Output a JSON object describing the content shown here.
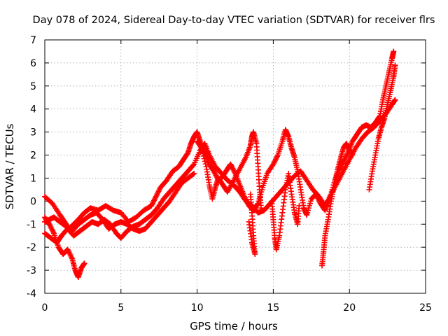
{
  "chart_data": {
    "type": "scatter",
    "title": "Day 078 of 2024, Sidereal Day-to-day VTEC variation (SDTVAR) for receiver flrs",
    "xlabel": "GPS time / hours",
    "ylabel": "SDTVAR / TECUs",
    "xlim": [
      0,
      25
    ],
    "ylim": [
      -4,
      7
    ],
    "xticks": [
      "0",
      "5",
      "10",
      "15",
      "20",
      "25"
    ],
    "yticks": [
      "-4",
      "-3",
      "-2",
      "-1",
      "0",
      "1",
      "2",
      "3",
      "4",
      "5",
      "6",
      "7"
    ],
    "grid": true,
    "marker": "+",
    "series": [
      {
        "name": "SDTVAR",
        "color": "#ff0000",
        "segments": [
          [
            [
              0.0,
              0.2
            ],
            [
              0.5,
              -0.1
            ],
            [
              1.0,
              -0.6
            ],
            [
              1.3,
              -0.9
            ],
            [
              1.6,
              -1.2
            ],
            [
              1.9,
              -1.0
            ],
            [
              2.2,
              -0.8
            ],
            [
              2.6,
              -0.5
            ],
            [
              3.0,
              -0.3
            ],
            [
              3.5,
              -0.4
            ],
            [
              4.0,
              -0.2
            ],
            [
              4.5,
              -0.4
            ],
            [
              5.0,
              -0.5
            ],
            [
              5.5,
              -0.9
            ],
            [
              6.0,
              -0.7
            ],
            [
              6.5,
              -0.4
            ],
            [
              7.0,
              -0.2
            ],
            [
              7.3,
              0.2
            ],
            [
              7.6,
              0.6
            ],
            [
              8.0,
              0.9
            ],
            [
              8.4,
              1.3
            ],
            [
              8.8,
              1.5
            ],
            [
              9.1,
              1.8
            ],
            [
              9.4,
              2.1
            ],
            [
              9.6,
              2.5
            ],
            [
              9.8,
              2.8
            ],
            [
              10.0,
              3.0
            ],
            [
              10.2,
              2.6
            ],
            [
              10.5,
              2.1
            ],
            [
              10.8,
              1.6
            ],
            [
              11.1,
              1.3
            ],
            [
              11.4,
              0.9
            ],
            [
              11.7,
              1.1
            ],
            [
              12.0,
              1.4
            ],
            [
              12.2,
              1.6
            ],
            [
              12.5,
              1.2
            ],
            [
              12.8,
              0.7
            ],
            [
              13.1,
              0.2
            ],
            [
              13.4,
              -0.2
            ],
            [
              13.7,
              -0.4
            ],
            [
              14.0,
              -0.1
            ],
            [
              14.3,
              0.6
            ],
            [
              14.6,
              1.2
            ],
            [
              15.0,
              1.6
            ],
            [
              15.3,
              2.0
            ],
            [
              15.6,
              2.6
            ],
            [
              15.8,
              3.1
            ],
            [
              16.0,
              2.8
            ],
            [
              16.2,
              2.3
            ],
            [
              16.4,
              1.9
            ],
            [
              16.6,
              1.3
            ],
            [
              16.8,
              0.5
            ],
            [
              17.0,
              -0.3
            ],
            [
              17.2,
              -0.6
            ],
            [
              17.5,
              0.1
            ],
            [
              17.8,
              0.3
            ],
            [
              18.1,
              -0.1
            ],
            [
              18.4,
              -0.4
            ],
            [
              18.7,
              0.1
            ],
            [
              19.0,
              0.8
            ],
            [
              19.3,
              1.3
            ],
            [
              19.6,
              1.7
            ],
            [
              19.9,
              2.1
            ],
            [
              20.2,
              2.6
            ],
            [
              20.5,
              2.9
            ],
            [
              20.8,
              3.2
            ],
            [
              21.1,
              3.3
            ],
            [
              21.4,
              3.2
            ],
            [
              21.7,
              3.4
            ],
            [
              22.0,
              3.7
            ],
            [
              22.2,
              4.4
            ],
            [
              22.4,
              5.0
            ],
            [
              22.6,
              5.6
            ],
            [
              22.8,
              6.2
            ],
            [
              22.9,
              6.5
            ]
          ],
          [
            [
              0.0,
              -0.7
            ],
            [
              0.3,
              -1.0
            ],
            [
              0.6,
              -1.4
            ],
            [
              0.9,
              -2.0
            ],
            [
              1.2,
              -2.3
            ],
            [
              1.5,
              -2.1
            ],
            [
              1.8,
              -2.5
            ],
            [
              2.0,
              -3.0
            ],
            [
              2.2,
              -3.3
            ],
            [
              2.4,
              -2.9
            ],
            [
              2.6,
              -2.7
            ]
          ],
          [
            [
              0.0,
              -1.4
            ],
            [
              0.4,
              -1.6
            ],
            [
              0.8,
              -1.8
            ],
            [
              1.1,
              -1.5
            ],
            [
              1.5,
              -1.2
            ],
            [
              1.9,
              -1.5
            ],
            [
              2.3,
              -1.3
            ],
            [
              2.7,
              -1.1
            ],
            [
              3.1,
              -0.9
            ],
            [
              3.5,
              -1.0
            ],
            [
              3.9,
              -0.8
            ],
            [
              4.3,
              -1.0
            ],
            [
              4.7,
              -1.4
            ],
            [
              5.0,
              -1.6
            ],
            [
              5.4,
              -1.3
            ],
            [
              5.8,
              -1.1
            ],
            [
              6.2,
              -1.0
            ],
            [
              6.6,
              -0.8
            ],
            [
              7.0,
              -0.6
            ],
            [
              7.4,
              -0.3
            ],
            [
              7.8,
              0.1
            ],
            [
              8.2,
              0.4
            ],
            [
              8.6,
              0.7
            ],
            [
              9.0,
              1.0
            ],
            [
              9.4,
              1.3
            ],
            [
              9.8,
              1.6
            ],
            [
              10.2,
              2.2
            ],
            [
              10.5,
              2.5
            ],
            [
              10.8,
              2.0
            ],
            [
              11.2,
              1.5
            ],
            [
              11.6,
              1.2
            ],
            [
              12.0,
              0.9
            ],
            [
              12.4,
              0.7
            ],
            [
              12.8,
              0.4
            ],
            [
              13.2,
              0.0
            ],
            [
              13.6,
              -0.2
            ],
            [
              14.0,
              -0.5
            ],
            [
              14.4,
              -0.4
            ],
            [
              14.8,
              -0.1
            ],
            [
              15.2,
              0.2
            ],
            [
              15.6,
              0.5
            ],
            [
              16.0,
              0.8
            ],
            [
              16.4,
              1.1
            ],
            [
              16.8,
              1.3
            ],
            [
              17.2,
              0.9
            ],
            [
              17.6,
              0.5
            ],
            [
              18.0,
              0.2
            ],
            [
              18.4,
              -0.2
            ],
            [
              18.8,
              0.3
            ],
            [
              19.2,
              0.8
            ],
            [
              19.6,
              1.3
            ],
            [
              20.0,
              1.8
            ],
            [
              20.4,
              2.3
            ],
            [
              20.8,
              2.7
            ],
            [
              21.2,
              3.0
            ],
            [
              21.6,
              3.2
            ],
            [
              22.0,
              3.5
            ],
            [
              22.4,
              3.8
            ],
            [
              22.8,
              4.2
            ],
            [
              23.0,
              4.4
            ]
          ],
          [
            [
              0.0,
              -0.9
            ],
            [
              0.3,
              -0.8
            ],
            [
              0.6,
              -0.7
            ],
            [
              1.0,
              -0.9
            ],
            [
              1.4,
              -1.1
            ],
            [
              1.8,
              -1.3
            ],
            [
              2.2,
              -1.0
            ],
            [
              2.6,
              -0.8
            ],
            [
              3.0,
              -0.6
            ],
            [
              3.4,
              -0.5
            ],
            [
              3.8,
              -0.8
            ],
            [
              4.2,
              -1.2
            ],
            [
              4.6,
              -1.0
            ],
            [
              5.0,
              -0.9
            ],
            [
              5.4,
              -1.0
            ],
            [
              5.8,
              -1.2
            ],
            [
              6.2,
              -1.3
            ],
            [
              6.6,
              -1.2
            ],
            [
              7.0,
              -0.9
            ],
            [
              7.4,
              -0.6
            ],
            [
              7.8,
              -0.3
            ],
            [
              8.2,
              0.0
            ],
            [
              8.6,
              0.4
            ],
            [
              9.0,
              0.8
            ],
            [
              9.4,
              1.0
            ],
            [
              9.8,
              1.2
            ]
          ],
          [
            [
              10.0,
              2.6
            ],
            [
              10.3,
              2.3
            ],
            [
              10.6,
              1.5
            ],
            [
              10.8,
              0.7
            ],
            [
              11.0,
              0.1
            ],
            [
              11.2,
              0.6
            ],
            [
              11.4,
              1.0
            ],
            [
              11.7,
              0.7
            ],
            [
              12.0,
              0.4
            ],
            [
              12.4,
              0.9
            ],
            [
              12.8,
              1.4
            ],
            [
              13.2,
              1.9
            ],
            [
              13.5,
              2.4
            ],
            [
              13.6,
              2.8
            ],
            [
              13.7,
              3.0
            ],
            [
              13.9,
              2.5
            ],
            [
              14.0,
              1.5
            ],
            [
              14.1,
              0.5
            ],
            [
              14.2,
              -0.3
            ]
          ],
          [
            [
              13.5,
              0.3
            ],
            [
              13.6,
              -0.5
            ],
            [
              13.7,
              -1.5
            ],
            [
              13.8,
              -2.3
            ],
            [
              13.6,
              -1.8
            ],
            [
              13.4,
              -0.9
            ]
          ],
          [
            [
              14.9,
              0.0
            ],
            [
              15.0,
              -0.8
            ],
            [
              15.1,
              -1.6
            ],
            [
              15.2,
              -2.1
            ],
            [
              15.4,
              -1.5
            ],
            [
              15.6,
              -0.5
            ],
            [
              15.8,
              0.5
            ],
            [
              16.0,
              1.2
            ],
            [
              16.2,
              0.3
            ],
            [
              16.4,
              -0.5
            ],
            [
              16.6,
              -1.0
            ],
            [
              16.7,
              -0.2
            ]
          ],
          [
            [
              18.2,
              -2.8
            ],
            [
              18.3,
              -2.2
            ],
            [
              18.4,
              -1.5
            ],
            [
              18.6,
              -0.8
            ],
            [
              18.8,
              0.0
            ],
            [
              19.0,
              0.7
            ],
            [
              19.2,
              1.3
            ],
            [
              19.4,
              1.8
            ],
            [
              19.6,
              2.3
            ],
            [
              19.8,
              2.5
            ],
            [
              20.0,
              2.2
            ],
            [
              20.2,
              2.0
            ]
          ],
          [
            [
              21.3,
              0.5
            ],
            [
              21.5,
              1.3
            ],
            [
              21.7,
              2.0
            ],
            [
              21.9,
              2.7
            ],
            [
              22.1,
              3.2
            ],
            [
              22.3,
              3.6
            ],
            [
              22.5,
              4.2
            ],
            [
              22.7,
              4.8
            ],
            [
              22.9,
              5.4
            ],
            [
              23.0,
              5.9
            ]
          ]
        ]
      }
    ]
  }
}
